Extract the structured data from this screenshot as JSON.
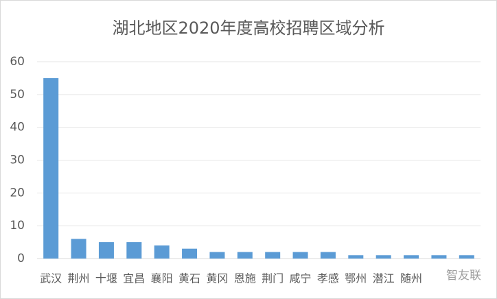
{
  "chart_data": {
    "type": "bar",
    "title": "湖北地区2020年度高校招聘区域分析",
    "categories": [
      "武汉",
      "荆州",
      "十堰",
      "宜昌",
      "襄阳",
      "黄石",
      "黄冈",
      "恩施",
      "荆门",
      "咸宁",
      "孝感",
      "鄂州",
      "潜江",
      "随州",
      null,
      null
    ],
    "values": [
      55,
      6,
      5,
      5,
      4,
      3,
      2,
      2,
      2,
      2,
      2,
      1,
      1,
      1,
      1,
      1
    ],
    "color": "#5b9bd5",
    "ylim": [
      0,
      60
    ],
    "yticks": [
      0,
      10,
      20,
      30,
      40,
      50,
      60
    ],
    "grid": true,
    "watermark": "智友联"
  }
}
